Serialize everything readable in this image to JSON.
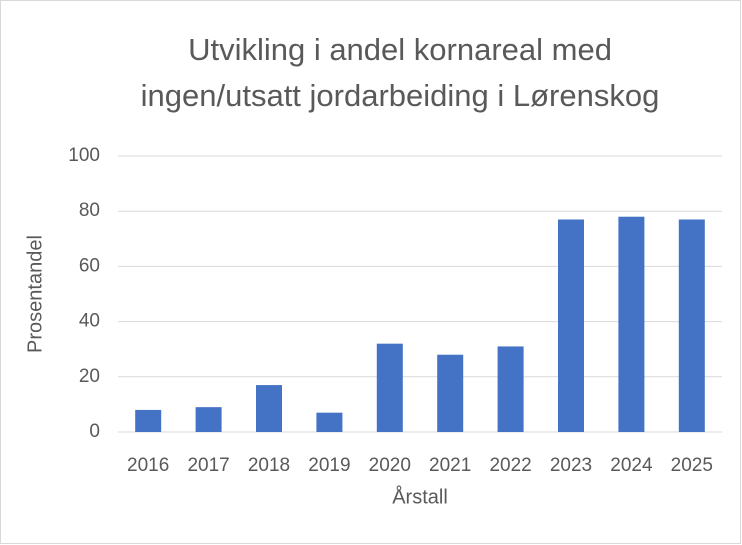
{
  "chart_data": {
    "type": "bar",
    "title": [
      "Utvikling i andel kornareal med",
      "ingen/utsatt jordarbeiding i Lørenskog"
    ],
    "x_label": "Årstall",
    "y_label": "Prosentandel",
    "categories": [
      "2016",
      "2017",
      "2018",
      "2019",
      "2020",
      "2021",
      "2022",
      "2023",
      "2024",
      "2025"
    ],
    "values": [
      8,
      9,
      17,
      7,
      32,
      28,
      31,
      77,
      78,
      77
    ],
    "color": "#4472c4",
    "ylim": [
      0,
      100
    ],
    "yticks": [
      0,
      20,
      40,
      60,
      80,
      100
    ],
    "grid": true
  }
}
